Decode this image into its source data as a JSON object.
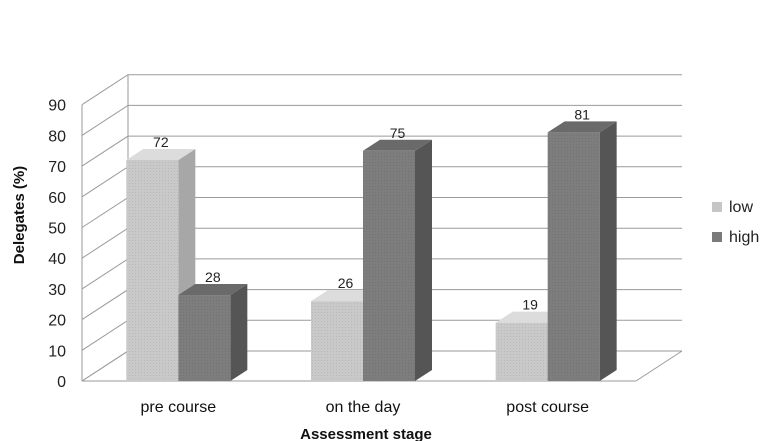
{
  "chart_data": {
    "type": "bar",
    "style": "3d-clustered-column",
    "categories": [
      "pre course",
      "on the day",
      "post course"
    ],
    "series": [
      {
        "name": "low",
        "values": [
          72,
          26,
          19
        ],
        "color": "#c6c6c6"
      },
      {
        "name": "high",
        "values": [
          28,
          75,
          81
        ],
        "color": "#7a7a7a"
      }
    ],
    "data_labels": [
      [
        "72",
        "26",
        "19"
      ],
      [
        "28",
        "75",
        "81"
      ]
    ],
    "xlabel": "Assessment stage",
    "ylabel": "Delegates (%)",
    "ylim": [
      0,
      90
    ],
    "yticks": [
      "0",
      "10",
      "20",
      "30",
      "40",
      "50",
      "60",
      "70",
      "80",
      "90"
    ],
    "grid": true,
    "legend_position": "right"
  }
}
